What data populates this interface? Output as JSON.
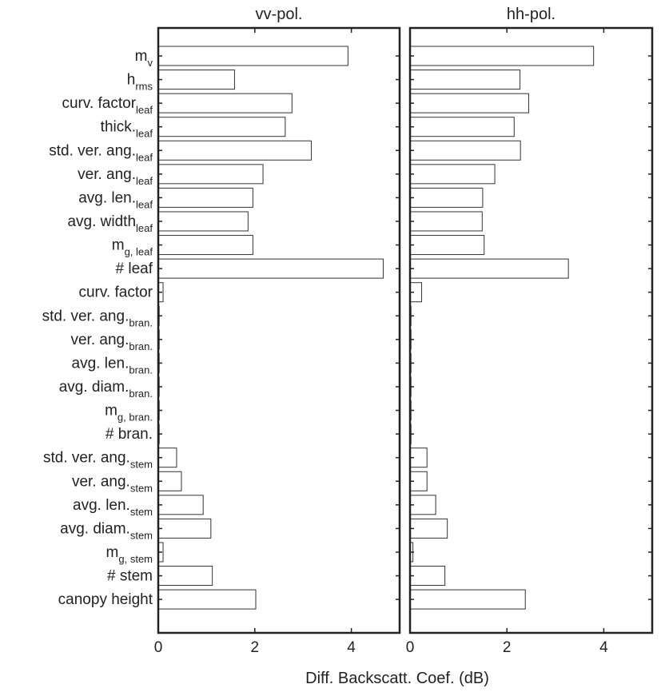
{
  "chart_data": [
    {
      "type": "bar",
      "orientation": "horizontal",
      "title": "vv-pol.",
      "xlim": [
        0,
        5
      ],
      "xticks": [
        "0",
        "2",
        "4"
      ],
      "grid": false,
      "categories": [
        {
          "main": "m",
          "sub": "v"
        },
        {
          "main": "h",
          "sub": "rms"
        },
        {
          "main": "curv. factor",
          "sub": "leaf"
        },
        {
          "main": "thick.",
          "sub": "leaf"
        },
        {
          "main": "std. ver. ang.",
          "sub": "leaf"
        },
        {
          "main": "ver. ang.",
          "sub": "leaf"
        },
        {
          "main": "avg. len.",
          "sub": "leaf"
        },
        {
          "main": "avg. width",
          "sub": "leaf"
        },
        {
          "main": "m",
          "sub": "g, leaf"
        },
        {
          "main": "# leaf",
          "sub": ""
        },
        {
          "main": "curv. factor",
          "sub": ""
        },
        {
          "main": "std. ver. ang.",
          "sub": "bran."
        },
        {
          "main": "ver. ang.",
          "sub": "bran."
        },
        {
          "main": "avg. len.",
          "sub": "bran."
        },
        {
          "main": "avg. diam.",
          "sub": "bran."
        },
        {
          "main": "m",
          "sub": "g, bran."
        },
        {
          "main": "# bran.",
          "sub": ""
        },
        {
          "main": "std. ver. ang.",
          "sub": "stem"
        },
        {
          "main": "ver. ang.",
          "sub": "stem"
        },
        {
          "main": "avg. len.",
          "sub": "stem"
        },
        {
          "main": "avg. diam.",
          "sub": "stem"
        },
        {
          "main": "m",
          "sub": "g, stem"
        },
        {
          "main": "# stem",
          "sub": ""
        },
        {
          "main": "canopy height",
          "sub": ""
        }
      ],
      "values": [
        3.93,
        1.58,
        2.77,
        2.63,
        3.17,
        2.17,
        1.96,
        1.86,
        1.96,
        4.66,
        0.1,
        0.02,
        0.02,
        0.02,
        0.02,
        0.02,
        0.02,
        0.38,
        0.48,
        0.93,
        1.09,
        0.1,
        1.12,
        2.02
      ]
    },
    {
      "type": "bar",
      "orientation": "horizontal",
      "title": "hh-pol.",
      "xlim": [
        0,
        5
      ],
      "xticks": [
        "0",
        "2",
        "4"
      ],
      "grid": false,
      "values": [
        3.79,
        2.27,
        2.45,
        2.15,
        2.28,
        1.75,
        1.5,
        1.49,
        1.53,
        3.27,
        0.24,
        0.02,
        0.02,
        0.02,
        0.02,
        0.02,
        0.02,
        0.35,
        0.35,
        0.53,
        0.77,
        0.06,
        0.72,
        2.38
      ]
    }
  ],
  "xlabel": "Diff. Backscatt. Coef. (dB)"
}
